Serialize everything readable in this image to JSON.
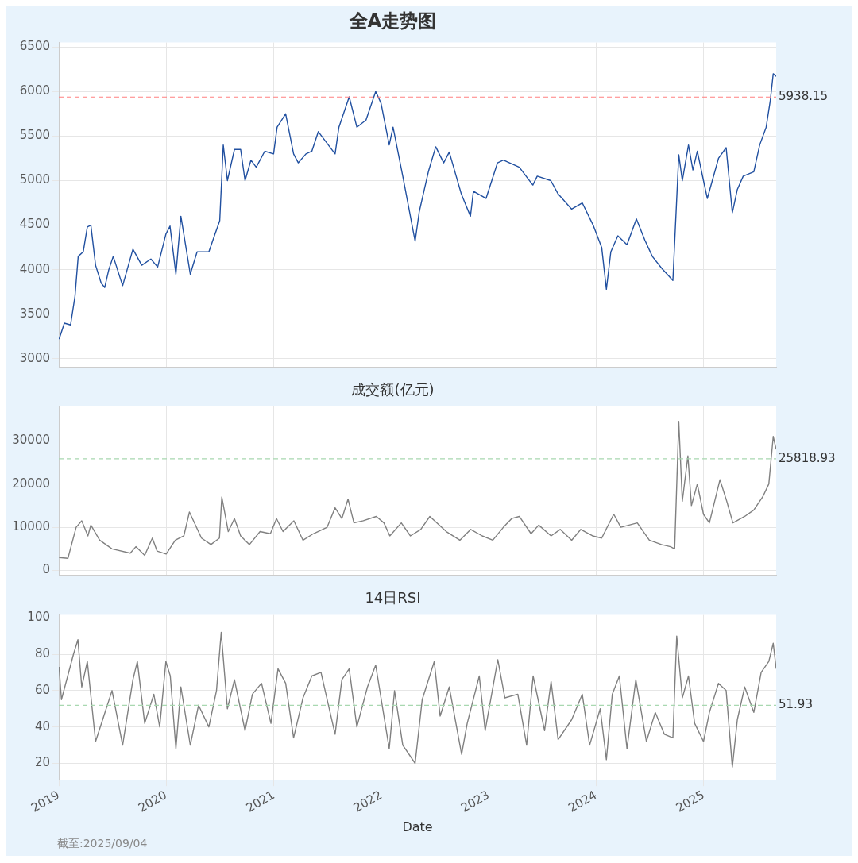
{
  "chart_data": [
    {
      "type": "line",
      "title": "全A走势图",
      "xlim": [
        "2019-01-01",
        "2025-09-04"
      ],
      "xticks": [
        "2019",
        "2020",
        "2021",
        "2022",
        "2023",
        "2024",
        "2025"
      ],
      "ylim": [
        2910,
        6550
      ],
      "yticks": [
        3000,
        3500,
        4000,
        4500,
        5000,
        5500,
        6000,
        6500
      ],
      "grid": true,
      "tick_labels": "y",
      "x": [
        "2019-01-02",
        "2019-01-20",
        "2019-02-10",
        "2019-02-25",
        "2019-03-08",
        "2019-03-25",
        "2019-04-08",
        "2019-04-20",
        "2019-05-06",
        "2019-05-25",
        "2019-06-06",
        "2019-06-20",
        "2019-07-05",
        "2019-08-06",
        "2019-09-10",
        "2019-10-10",
        "2019-11-10",
        "2019-12-03",
        "2019-12-31",
        "2020-01-14",
        "2020-02-03",
        "2020-02-20",
        "2020-03-23",
        "2020-04-15",
        "2020-05-25",
        "2020-06-15",
        "2020-07-01",
        "2020-07-13",
        "2020-07-27",
        "2020-08-20",
        "2020-09-10",
        "2020-09-25",
        "2020-10-15",
        "2020-11-02",
        "2020-12-01",
        "2020-12-31",
        "2021-01-12",
        "2021-02-10",
        "2021-03-09",
        "2021-03-25",
        "2021-04-20",
        "2021-05-10",
        "2021-06-01",
        "2021-07-28",
        "2021-08-10",
        "2021-09-14",
        "2021-10-10",
        "2021-11-10",
        "2021-12-13",
        "2021-12-31",
        "2022-01-28",
        "2022-02-10",
        "2022-03-15",
        "2022-04-26",
        "2022-05-10",
        "2022-06-10",
        "2022-07-05",
        "2022-08-01",
        "2022-08-20",
        "2022-09-30",
        "2022-10-31",
        "2022-11-10",
        "2022-12-23",
        "2023-01-31",
        "2023-02-20",
        "2023-04-15",
        "2023-05-31",
        "2023-06-15",
        "2023-07-31",
        "2023-08-25",
        "2023-10-10",
        "2023-11-15",
        "2023-12-22",
        "2024-01-20",
        "2024-02-05",
        "2024-02-20",
        "2024-03-15",
        "2024-04-15",
        "2024-05-17",
        "2024-06-15",
        "2024-07-10",
        "2024-08-10",
        "2024-09-18",
        "2024-10-08",
        "2024-10-20",
        "2024-11-10",
        "2024-11-25",
        "2024-12-10",
        "2024-12-31",
        "2025-01-13",
        "2025-02-20",
        "2025-03-18",
        "2025-04-08",
        "2025-04-25",
        "2025-05-15",
        "2025-06-20",
        "2025-07-10",
        "2025-08-01",
        "2025-08-15",
        "2025-08-25",
        "2025-09-04"
      ],
      "series": [
        {
          "color": "#2150a0",
          "values": [
            3220,
            3400,
            3380,
            3700,
            4150,
            4200,
            4480,
            4500,
            4050,
            3850,
            3800,
            4000,
            4150,
            3820,
            4230,
            4050,
            4120,
            4030,
            4400,
            4490,
            3950,
            4600,
            3950,
            4200,
            4200,
            4400,
            4550,
            5400,
            5000,
            5350,
            5350,
            5000,
            5230,
            5150,
            5330,
            5300,
            5600,
            5750,
            5300,
            5200,
            5300,
            5330,
            5550,
            5300,
            5600,
            5940,
            5600,
            5680,
            6000,
            5870,
            5400,
            5600,
            5050,
            4320,
            4650,
            5100,
            5380,
            5200,
            5320,
            4850,
            4600,
            4880,
            4800,
            5200,
            5230,
            5150,
            4950,
            5050,
            5000,
            4850,
            4680,
            4750,
            4500,
            4250,
            3780,
            4200,
            4380,
            4280,
            4570,
            4330,
            4150,
            4020,
            3880,
            5290,
            5000,
            5400,
            5120,
            5330,
            5000,
            4800,
            5250,
            5370,
            4640,
            4900,
            5050,
            5100,
            5400,
            5600,
            5900,
            6200,
            6170
          ]
        }
      ],
      "ref_lines": [
        {
          "axis": "y",
          "value": 5938.15,
          "label": "5938.15",
          "color": "#ff8080",
          "line_style": "dashed"
        }
      ]
    },
    {
      "type": "line",
      "title": "成交额(亿元)",
      "xlim": [
        "2019-01-01",
        "2025-09-04"
      ],
      "xticks": [
        "2019",
        "2020",
        "2021",
        "2022",
        "2023",
        "2024",
        "2025"
      ],
      "ylim": [
        -1000,
        38000
      ],
      "yticks": [
        0,
        10000,
        20000,
        30000
      ],
      "grid": true,
      "tick_labels": "y",
      "x": [
        "2019-01-02",
        "2019-02-01",
        "2019-03-01",
        "2019-03-20",
        "2019-04-10",
        "2019-04-20",
        "2019-05-20",
        "2019-07-01",
        "2019-09-01",
        "2019-09-20",
        "2019-10-20",
        "2019-11-15",
        "2019-12-01",
        "2020-01-01",
        "2020-02-01",
        "2020-03-01",
        "2020-03-20",
        "2020-04-30",
        "2020-06-01",
        "2020-06-30",
        "2020-07-08",
        "2020-07-30",
        "2020-08-20",
        "2020-09-10",
        "2020-10-10",
        "2020-11-15",
        "2020-12-20",
        "2021-01-10",
        "2021-02-01",
        "2021-03-10",
        "2021-04-10",
        "2021-05-15",
        "2021-07-01",
        "2021-07-28",
        "2021-08-20",
        "2021-09-10",
        "2021-09-30",
        "2021-11-01",
        "2021-12-15",
        "2022-01-10",
        "2022-01-30",
        "2022-03-10",
        "2022-04-10",
        "2022-05-15",
        "2022-06-15",
        "2022-08-10",
        "2022-09-25",
        "2022-11-01",
        "2022-12-10",
        "2023-01-15",
        "2023-02-20",
        "2023-03-20",
        "2023-04-15",
        "2023-05-25",
        "2023-06-20",
        "2023-08-01",
        "2023-09-01",
        "2023-10-10",
        "2023-11-10",
        "2023-12-20",
        "2024-01-20",
        "2024-03-01",
        "2024-03-25",
        "2024-05-20",
        "2024-06-30",
        "2024-08-10",
        "2024-09-10",
        "2024-09-24",
        "2024-10-08",
        "2024-10-20",
        "2024-11-08",
        "2024-11-20",
        "2024-12-10",
        "2024-12-31",
        "2025-01-20",
        "2025-02-25",
        "2025-03-20",
        "2025-04-10",
        "2025-05-20",
        "2025-06-20",
        "2025-07-20",
        "2025-08-10",
        "2025-08-25",
        "2025-09-04"
      ],
      "series": [
        {
          "color": "#808080",
          "values": [
            3000,
            2800,
            10000,
            11500,
            8000,
            10500,
            7000,
            5000,
            4000,
            5500,
            3500,
            7500,
            4500,
            3800,
            7000,
            8000,
            13500,
            7500,
            6000,
            7500,
            17000,
            9000,
            12000,
            8000,
            6000,
            9000,
            8500,
            12000,
            9000,
            11500,
            7000,
            8500,
            10000,
            14500,
            12000,
            16500,
            11000,
            11500,
            12500,
            11000,
            8000,
            11000,
            8000,
            9500,
            12500,
            9000,
            7000,
            9500,
            8000,
            7000,
            10000,
            12000,
            12500,
            8500,
            10500,
            8000,
            9500,
            7000,
            9500,
            8000,
            7500,
            13000,
            10000,
            11000,
            7000,
            6000,
            5500,
            5000,
            34500,
            16000,
            26500,
            15000,
            20000,
            13000,
            11000,
            21000,
            16000,
            11000,
            12500,
            14000,
            17000,
            20000,
            31000,
            28000
          ]
        }
      ],
      "ref_lines": [
        {
          "axis": "y",
          "value": 25818.93,
          "label": "25818.93",
          "color": "#a8d8b0",
          "line_style": "dashed"
        }
      ]
    },
    {
      "type": "line",
      "title": "14日RSI",
      "xlabel": "Date",
      "xlim": [
        "2019-01-01",
        "2025-09-04"
      ],
      "xticks": [
        "2019",
        "2020",
        "2021",
        "2022",
        "2023",
        "2024",
        "2025"
      ],
      "ylim": [
        11,
        102
      ],
      "yticks": [
        20,
        40,
        60,
        80,
        100
      ],
      "grid": true,
      "x": [
        "2019-01-02",
        "2019-01-10",
        "2019-02-20",
        "2019-03-07",
        "2019-03-20",
        "2019-04-08",
        "2019-05-06",
        "2019-06-01",
        "2019-07-01",
        "2019-08-06",
        "2019-09-10",
        "2019-09-25",
        "2019-10-20",
        "2019-11-20",
        "2019-12-10",
        "2019-12-31",
        "2020-01-15",
        "2020-02-03",
        "2020-02-20",
        "2020-03-23",
        "2020-04-20",
        "2020-05-25",
        "2020-06-20",
        "2020-07-06",
        "2020-07-27",
        "2020-08-20",
        "2020-09-25",
        "2020-10-20",
        "2020-11-20",
        "2020-12-22",
        "2021-01-15",
        "2021-02-10",
        "2021-03-09",
        "2021-04-10",
        "2021-05-10",
        "2021-06-10",
        "2021-07-28",
        "2021-08-20",
        "2021-09-14",
        "2021-10-10",
        "2021-11-15",
        "2021-12-13",
        "2022-01-28",
        "2022-02-15",
        "2022-03-15",
        "2022-04-26",
        "2022-05-20",
        "2022-06-30",
        "2022-07-20",
        "2022-08-20",
        "2022-10-01",
        "2022-10-20",
        "2022-11-30",
        "2022-12-20",
        "2023-02-01",
        "2023-02-25",
        "2023-04-10",
        "2023-05-10",
        "2023-06-01",
        "2023-07-10",
        "2023-08-01",
        "2023-08-25",
        "2023-10-10",
        "2023-11-15",
        "2023-12-10",
        "2024-01-15",
        "2024-02-05",
        "2024-02-25",
        "2024-03-20",
        "2024-04-15",
        "2024-05-15",
        "2024-06-20",
        "2024-07-20",
        "2024-08-20",
        "2024-09-18",
        "2024-10-01",
        "2024-10-20",
        "2024-11-10",
        "2024-12-01",
        "2024-12-31",
        "2025-01-20",
        "2025-02-20",
        "2025-03-18",
        "2025-04-08",
        "2025-04-25",
        "2025-05-20",
        "2025-06-20",
        "2025-07-15",
        "2025-08-10",
        "2025-08-25",
        "2025-09-04"
      ],
      "series": [
        {
          "color": "#808080",
          "values": [
            73,
            55,
            80,
            88,
            62,
            76,
            32,
            45,
            60,
            30,
            66,
            76,
            42,
            58,
            40,
            76,
            68,
            28,
            62,
            30,
            52,
            40,
            60,
            92,
            50,
            66,
            38,
            58,
            64,
            42,
            72,
            64,
            34,
            56,
            68,
            70,
            36,
            66,
            72,
            40,
            62,
            74,
            28,
            60,
            30,
            20,
            55,
            76,
            46,
            62,
            25,
            42,
            68,
            38,
            77,
            56,
            58,
            30,
            68,
            38,
            65,
            33,
            44,
            58,
            30,
            50,
            22,
            58,
            68,
            28,
            66,
            32,
            48,
            36,
            34,
            90,
            56,
            68,
            42,
            32,
            48,
            64,
            60,
            18,
            44,
            62,
            48,
            70,
            76,
            86,
            72
          ]
        }
      ],
      "ref_lines": [
        {
          "axis": "y",
          "value": 51.93,
          "label": "51.93",
          "color": "#a8d8b0",
          "line_style": "dashed"
        }
      ],
      "annotations": [
        "截至:2025/09/04"
      ]
    }
  ]
}
